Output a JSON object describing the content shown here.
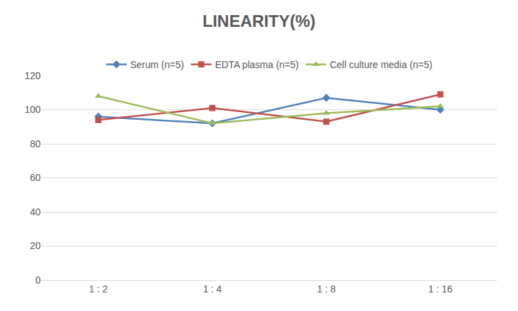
{
  "chart_data": {
    "type": "line",
    "title": "LINEARITY(%)",
    "categories": [
      "1 : 2",
      "1 : 4",
      "1 : 8",
      "1 : 16"
    ],
    "series": [
      {
        "name": "Serum (n=5)",
        "color": "#4F81BD",
        "marker": "diamond",
        "values": [
          96,
          92,
          107,
          100
        ]
      },
      {
        "name": "EDTA plasma (n=5)",
        "color": "#C0504D",
        "marker": "square",
        "values": [
          94,
          101,
          93,
          109
        ]
      },
      {
        "name": "Cell culture media (n=5)",
        "color": "#9BBB59",
        "marker": "triangle-up",
        "values": [
          108,
          92,
          98,
          102
        ]
      }
    ],
    "ylim": [
      0,
      120
    ],
    "yticks": [
      0,
      20,
      40,
      60,
      80,
      100,
      120
    ],
    "grid": true,
    "legend": "top"
  }
}
